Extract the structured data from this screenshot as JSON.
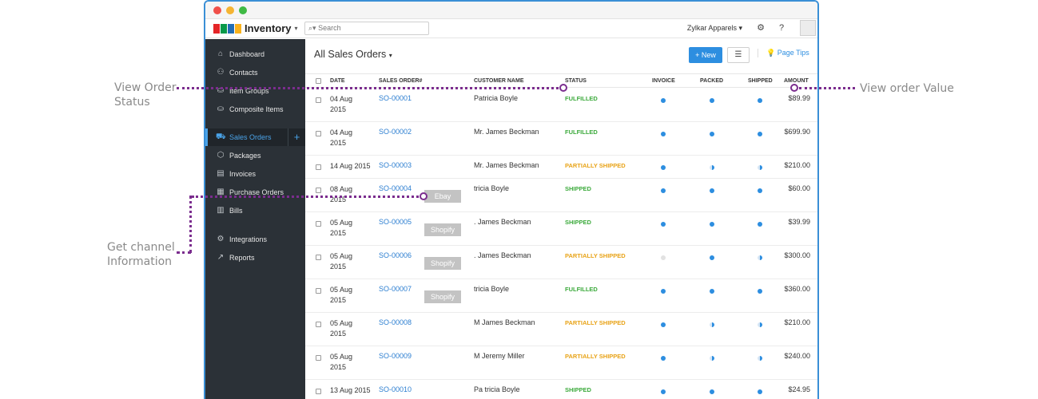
{
  "annotations": {
    "view_order_status": "View Order\nStatus",
    "view_order_value": "View order Value",
    "get_channel": "Get channel\nInformation"
  },
  "colors": {
    "accent": "#2d8ee0",
    "annotation_line": "#7b2d8e",
    "fulfilled": "#3caa3c",
    "partially_shipped": "#e8a317",
    "shipped": "#3caa3c",
    "sidebar_bg": "#2b3137"
  },
  "app": {
    "name": "Inventory",
    "search_placeholder": "Search",
    "org_name": "Zylkar Apparels",
    "settings_icon": "gear-icon",
    "help_icon": "help-icon"
  },
  "sidebar": {
    "items": [
      {
        "label": "Dashboard",
        "icon": "home-icon"
      },
      {
        "label": "Contacts",
        "icon": "user-icon"
      },
      {
        "label": "Item Groups",
        "icon": "basket-icon"
      },
      {
        "label": "Composite Items",
        "icon": "basket-icon"
      },
      {
        "label": "Sales Orders",
        "icon": "cart-icon"
      },
      {
        "label": "Packages",
        "icon": "package-icon"
      },
      {
        "label": "Invoices",
        "icon": "document-icon"
      },
      {
        "label": "Purchase Orders",
        "icon": "clipboard-icon"
      },
      {
        "label": "Bills",
        "icon": "receipt-icon"
      },
      {
        "label": "Integrations",
        "icon": "gears-icon"
      },
      {
        "label": "Reports",
        "icon": "chart-icon"
      }
    ],
    "active": "Sales Orders"
  },
  "main": {
    "title": "All Sales Orders",
    "new_button": "New",
    "page_tips": "Page Tips",
    "columns": [
      "DATE",
      "SALES ORDER#",
      "CUSTOMER NAME",
      "STATUS",
      "INVOICE",
      "PACKED",
      "SHIPPED",
      "AMOUNT"
    ],
    "rows": [
      {
        "date": "04 Aug\n2015",
        "so": "SO-00001",
        "customer": "Patricia Boyle",
        "status": "FULFILLED",
        "invoice": "full",
        "packed": "full",
        "shipped": "full",
        "amount": "$89.99"
      },
      {
        "date": "04 Aug\n2015",
        "so": "SO-00002",
        "customer": "Mr. James Beckman",
        "status": "FULFILLED",
        "invoice": "full",
        "packed": "full",
        "shipped": "full",
        "amount": "$699.90"
      },
      {
        "date": "14 Aug 2015",
        "so": "SO-00003",
        "customer": "Mr. James Beckman",
        "status": "PARTIALLY SHIPPED",
        "invoice": "full",
        "packed": "half",
        "shipped": "half",
        "amount": "$210.00"
      },
      {
        "date": "08 Aug\n2015",
        "so": "SO-00004",
        "customer": "tricia Boyle",
        "status": "SHIPPED",
        "invoice": "full",
        "packed": "full",
        "shipped": "full",
        "amount": "$60.00",
        "channel": "Ebay"
      },
      {
        "date": "05 Aug\n2015",
        "so": "SO-00005",
        "customer": ". James Beckman",
        "status": "SHIPPED",
        "invoice": "full",
        "packed": "full",
        "shipped": "full",
        "amount": "$39.99",
        "channel": "Shopify"
      },
      {
        "date": "05 Aug\n2015",
        "so": "SO-00006",
        "customer": ". James Beckman",
        "status": "PARTIALLY SHIPPED",
        "invoice": "empty",
        "packed": "full",
        "shipped": "half",
        "amount": "$300.00",
        "channel": "Shopify"
      },
      {
        "date": "05 Aug\n2015",
        "so": "SO-00007",
        "customer": "tricia Boyle",
        "status": "FULFILLED",
        "invoice": "full",
        "packed": "full",
        "shipped": "full",
        "amount": "$360.00",
        "channel": "Shopify"
      },
      {
        "date": "05 Aug\n2015",
        "so": "SO-00008",
        "customer": "M  James Beckman",
        "status": "PARTIALLY SHIPPED",
        "invoice": "full",
        "packed": "half",
        "shipped": "half",
        "amount": "$210.00"
      },
      {
        "date": "05 Aug\n2015",
        "so": "SO-00009",
        "customer": "M  Jeremy Miller",
        "status": "PARTIALLY SHIPPED",
        "invoice": "full",
        "packed": "half",
        "shipped": "half",
        "amount": "$240.00"
      },
      {
        "date": "13 Aug 2015",
        "so": "SO-00010",
        "customer": "Pa tricia Boyle",
        "status": "SHIPPED",
        "invoice": "full",
        "packed": "full",
        "shipped": "full",
        "amount": "$24.95"
      }
    ]
  }
}
